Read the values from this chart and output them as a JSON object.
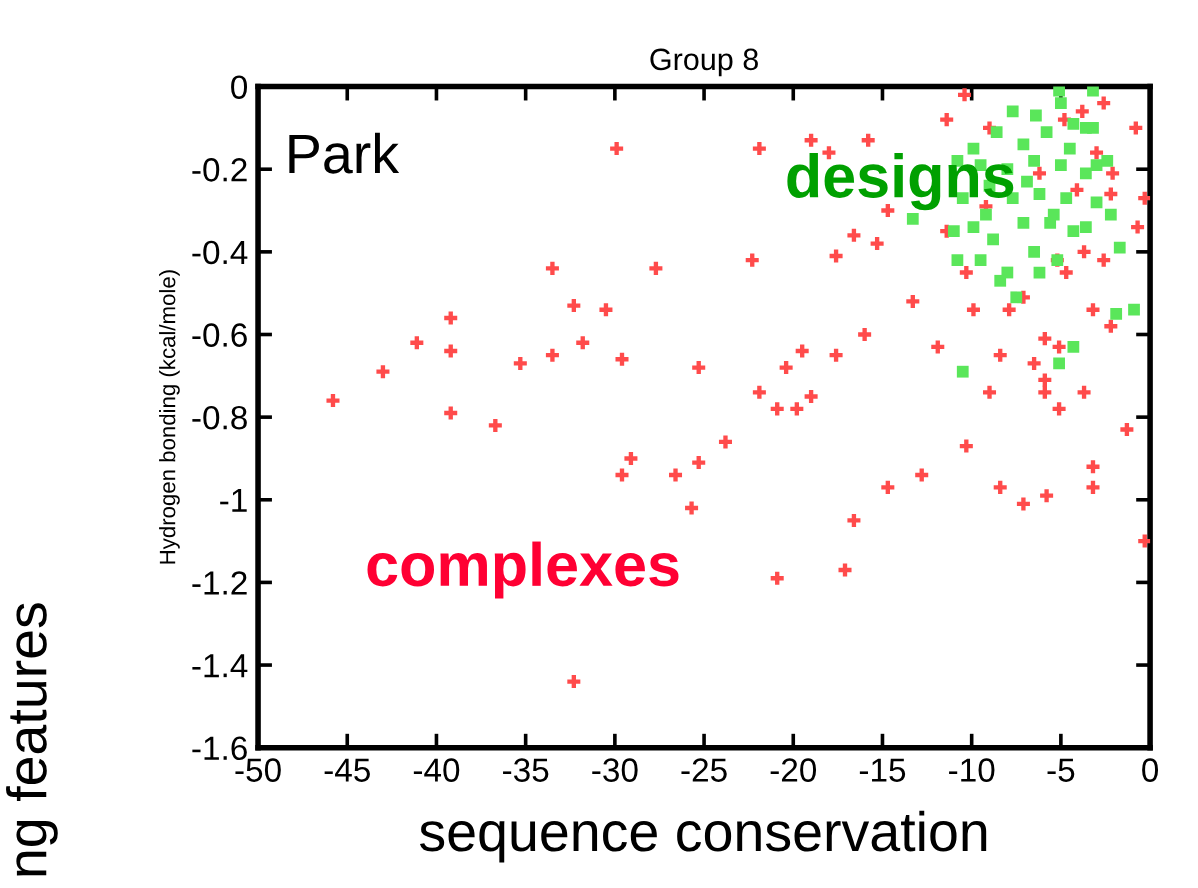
{
  "chart_data": {
    "type": "scatter",
    "title": "Group 8",
    "ylabel": "Hydrogen bonding (kcal/mole)",
    "xlabel": "sequence conservation",
    "annotations": [
      "Park",
      "ng features"
    ],
    "xlim": [
      -50,
      0
    ],
    "xticks": [
      -50,
      -45,
      -40,
      -35,
      -30,
      -25,
      -20,
      -15,
      -10,
      -5,
      0
    ],
    "ylim": [
      -1.6,
      0
    ],
    "yticks": [
      -1.6,
      -1.4,
      -1.2,
      -1,
      -0.8,
      -0.6,
      -0.4,
      -0.2,
      0
    ],
    "grid": false,
    "legend": false,
    "series": [
      {
        "name": "complexes",
        "color": "#ff4b4b",
        "marker": "cross",
        "x": [
          -45.8,
          -43.0,
          -41.1,
          -39.2,
          -39.2,
          -39.2,
          -36.7,
          -35.3,
          -33.5,
          -33.5,
          -32.3,
          -31.8,
          -30.5,
          -29.9,
          -29.6,
          -29.1,
          -29.6,
          -27.7,
          -26.6,
          -25.3,
          -25.3,
          -25.7,
          -23.8,
          -22.3,
          -21.9,
          -21.9,
          -20.9,
          -19.8,
          -19.0,
          -20.4,
          -19.5,
          -20.9,
          -19.0,
          -18.0,
          -17.6,
          -17.6,
          -17.1,
          -16.6,
          -16.6,
          -16.0,
          -15.8,
          -15.3,
          -14.7,
          -14.7,
          -13.3,
          -12.8,
          -11.9,
          -11.4,
          -11.4,
          -10.4,
          -10.3,
          -9.9,
          -10.3,
          -9.0,
          -8.4,
          -8.4,
          -7.9,
          -7.1,
          -7.1,
          -6.5,
          -5.9,
          -5.9,
          -5.9,
          -5.8,
          -5.1,
          -5.1,
          -4.7,
          -3.7,
          -3.7,
          -3.2,
          -3.2,
          -3.2,
          -2.6,
          -2.2,
          -1.3,
          -0.7,
          -0.3,
          -0.3,
          -0.8,
          -2.1,
          -2.2,
          -3.0,
          -2.6,
          -3.8,
          -4.1,
          -4.8,
          -6.2,
          -9.2,
          -9.0,
          -5.2,
          -32.3
        ],
        "values": [
          -0.76,
          -0.69,
          -0.62,
          -0.56,
          -0.64,
          -0.79,
          -0.82,
          -0.67,
          -0.44,
          -0.65,
          -0.53,
          -0.62,
          -0.54,
          -0.15,
          -0.66,
          -0.9,
          -0.94,
          -0.44,
          -0.94,
          -0.68,
          -0.91,
          -1.02,
          -0.86,
          -0.42,
          -0.15,
          -0.74,
          -0.78,
          -0.78,
          -0.75,
          -0.68,
          -0.64,
          -1.19,
          -0.13,
          -0.16,
          -0.65,
          -0.41,
          -1.17,
          -1.05,
          -0.36,
          -0.6,
          -0.13,
          -0.38,
          -0.97,
          -0.3,
          -0.52,
          -0.94,
          -0.63,
          -0.08,
          -0.35,
          -0.02,
          -0.87,
          -0.54,
          -0.45,
          -0.74,
          -0.65,
          -0.97,
          -0.54,
          -1.01,
          -0.51,
          -0.67,
          -0.61,
          -0.71,
          -0.74,
          -0.99,
          -0.78,
          -0.63,
          -0.45,
          -0.74,
          -0.4,
          -0.54,
          -0.92,
          -0.97,
          -0.42,
          -0.58,
          -0.83,
          -0.34,
          -0.27,
          -1.1,
          -0.1,
          -0.21,
          -0.26,
          -0.16,
          -0.04,
          -0.06,
          -0.25,
          -0.08,
          -0.21,
          -0.29,
          -0.1,
          -0.42,
          -1.44
        ]
      },
      {
        "name": "designs",
        "color": "#5ae65a",
        "marker": "square",
        "x": [
          -5.1,
          -3.2,
          -7.7,
          -6.4,
          -5.0,
          -3.2,
          -4.3,
          -9.9,
          -8.6,
          -7.1,
          -5.8,
          -4.5,
          -3.0,
          -10.8,
          -9.5,
          -8.0,
          -6.5,
          -5.0,
          -3.6,
          -2.4,
          -13.3,
          -11.8,
          -10.5,
          -9.0,
          -7.7,
          -6.2,
          -4.7,
          -3.0,
          -2.2,
          -11.0,
          -9.9,
          -8.8,
          -7.1,
          -5.6,
          -4.3,
          -10.8,
          -9.5,
          -8.0,
          -6.5,
          -5.2,
          -1.7,
          -8.4,
          -7.5,
          -6.2,
          -3.6,
          -0.9,
          -1.9,
          -4.3,
          -5.1,
          -10.5,
          -3.6,
          -5.4,
          -6.9,
          -9.2
        ],
        "values": [
          -0.01,
          -0.01,
          -0.06,
          -0.07,
          -0.04,
          -0.1,
          -0.09,
          -0.15,
          -0.11,
          -0.14,
          -0.11,
          -0.15,
          -0.19,
          -0.18,
          -0.19,
          -0.2,
          -0.18,
          -0.19,
          -0.21,
          -0.18,
          -0.32,
          null,
          -0.27,
          -0.24,
          -0.27,
          -0.26,
          -0.27,
          -0.28,
          -0.31,
          -0.35,
          -0.34,
          -0.37,
          -0.33,
          -0.33,
          -0.35,
          -0.42,
          -0.42,
          -0.45,
          -0.4,
          -0.42,
          -0.39,
          -0.47,
          -0.51,
          -0.45,
          -0.34,
          -0.54,
          -0.55,
          -0.63,
          -0.67,
          -0.69,
          -0.1,
          -0.31,
          -0.23,
          -0.31
        ]
      }
    ]
  }
}
